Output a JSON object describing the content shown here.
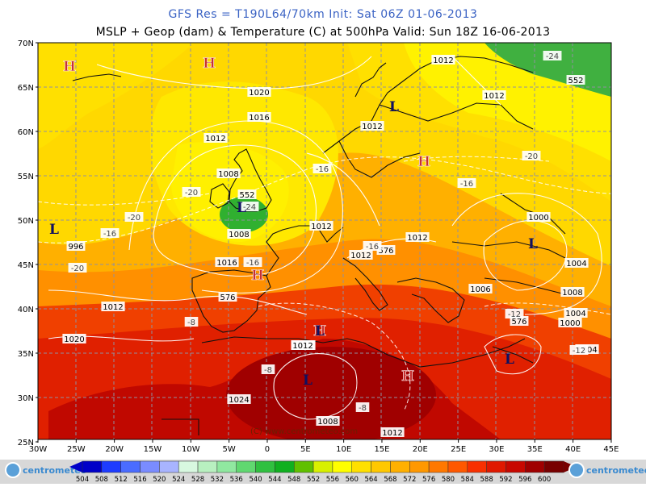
{
  "header": {
    "title_line1": "GFS Res = T190L64/70km    Init: Sat 06Z 01-06-2013",
    "title_line2": "MSLP + Geop (dam) & Temperature (C) at 500hPa   Valid: Sun 18Z 16-06-2013"
  },
  "axes": {
    "lat_labels": [
      "70N",
      "65N",
      "60N",
      "55N",
      "50N",
      "45N",
      "40N",
      "35N",
      "30N",
      "25N"
    ],
    "lon_labels": [
      "30W",
      "25W",
      "20W",
      "15W",
      "10W",
      "5W",
      "0",
      "5E",
      "10E",
      "15E",
      "20E",
      "25E",
      "30E",
      "35E",
      "40E",
      "45E"
    ]
  },
  "pressure_labels": [
    "1012",
    "1020",
    "1016",
    "1012",
    "1008",
    "1008",
    "1016",
    "1012",
    "1012",
    "1012",
    "1012",
    "1012",
    "1012",
    "1008",
    "1000",
    "1004",
    "1006",
    "1004",
    "1000",
    "1004",
    "996",
    "1012",
    "1020",
    "1024",
    "1008",
    "1012",
    "1012"
  ],
  "geop_labels": [
    "552",
    "552",
    "576",
    "576",
    "576"
  ],
  "temp_labels": [
    "-24",
    "-24",
    "-20",
    "-20",
    "-20",
    "-16",
    "-16",
    "-16",
    "-16",
    "-16",
    "-20",
    "-12",
    "-8",
    "-8",
    "-8",
    "-12"
  ],
  "systems": {
    "highs": [
      "H",
      "H",
      "H",
      "H",
      "H",
      "H"
    ],
    "lows": [
      "L",
      "L",
      "L",
      "L",
      "L",
      "L",
      "L"
    ]
  },
  "watermark": "(C) www.centrometeo.com",
  "colorbar": {
    "values": [
      "504",
      "508",
      "512",
      "516",
      "520",
      "524",
      "528",
      "532",
      "536",
      "540",
      "544",
      "548",
      "552",
      "556",
      "560",
      "564",
      "568",
      "572",
      "576",
      "580",
      "584",
      "588",
      "592",
      "596",
      "600"
    ],
    "colors": [
      "#0000c8",
      "#1e3cff",
      "#4a6cff",
      "#7a8cff",
      "#a8b4ff",
      "#d8f8e0",
      "#b8f0c0",
      "#90e8a0",
      "#60d870",
      "#30c040",
      "#10b020",
      "#60c000",
      "#d8f000",
      "#ffff00",
      "#ffe000",
      "#ffc800",
      "#ffb000",
      "#ff9800",
      "#ff7800",
      "#ff5800",
      "#f83000",
      "#e01800",
      "#c80800",
      "#a00000",
      "#780000"
    ],
    "logo_text": "centrometeo"
  }
}
